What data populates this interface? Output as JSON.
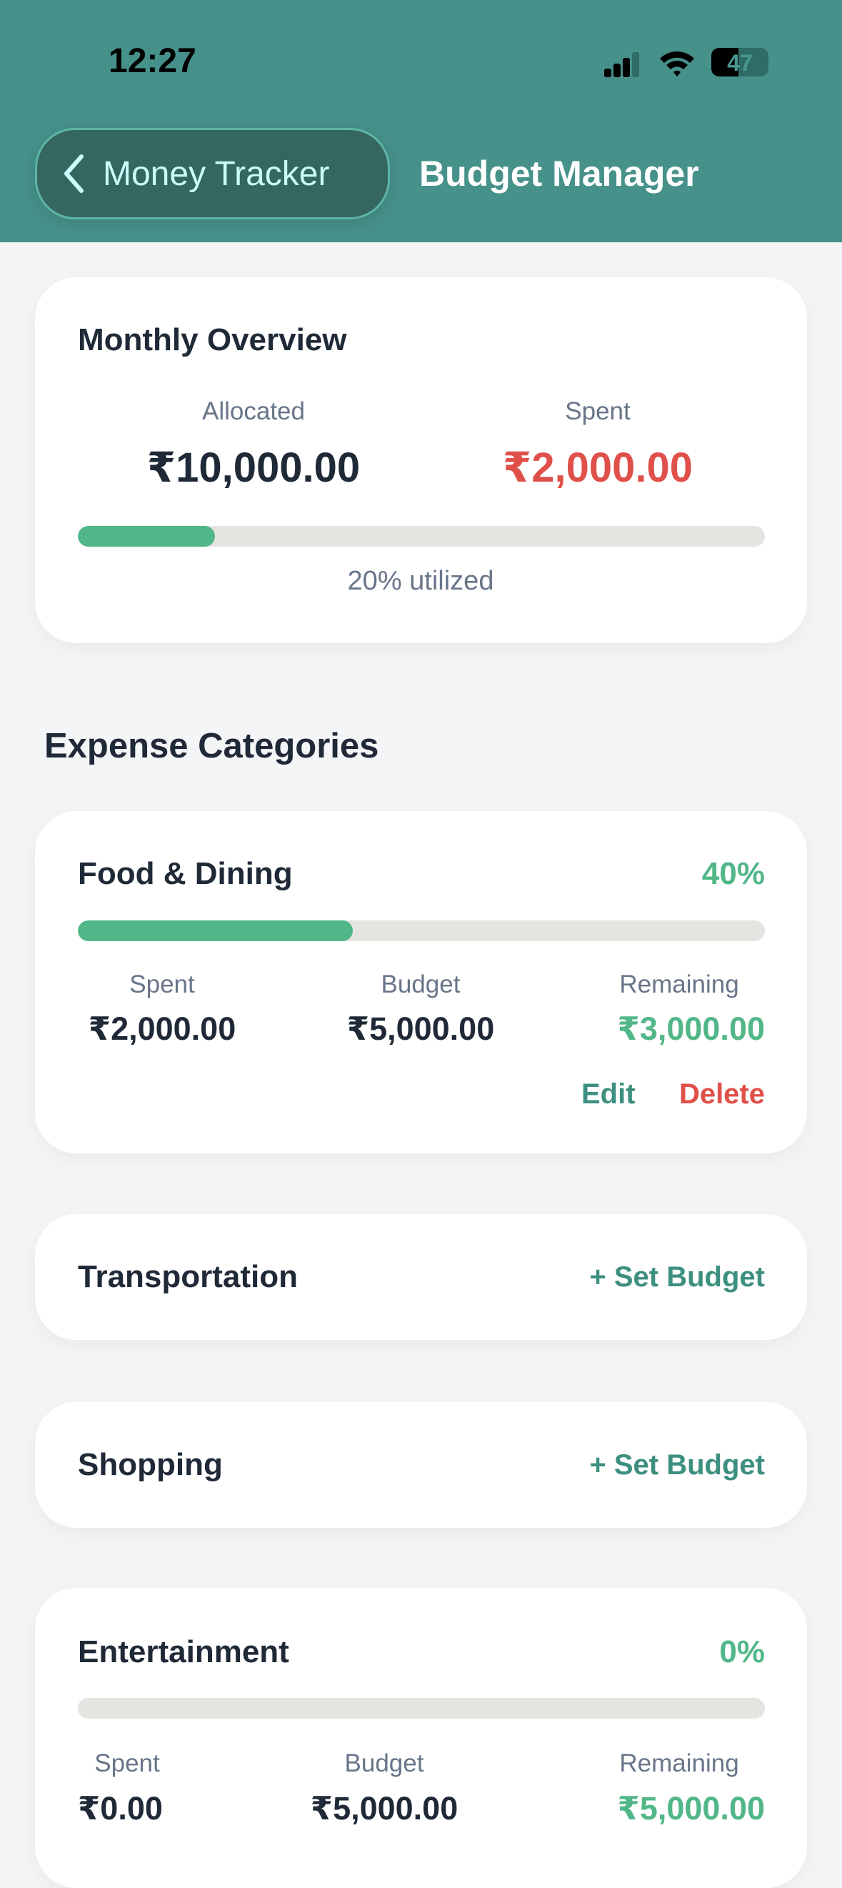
{
  "status_bar": {
    "time": "12:27",
    "battery": "47"
  },
  "header": {
    "back_label": "Money Tracker",
    "title": "Budget Manager"
  },
  "overview": {
    "title": "Monthly Overview",
    "allocated_label": "Allocated",
    "allocated": "₹10,000.00",
    "spent_label": "Spent",
    "spent": "₹2,000.00",
    "utilized_pct": 20,
    "utilized_text": "20% utilized"
  },
  "section_title": "Expense Categories",
  "categories": [
    {
      "name": "Food & Dining",
      "percent": "40%",
      "progress": 40,
      "spent_label": "Spent",
      "spent": "₹2,000.00",
      "budget_label": "Budget",
      "budget": "₹5,000.00",
      "remaining_label": "Remaining",
      "remaining": "₹3,000.00",
      "edit": "Edit",
      "delete": "Delete"
    },
    {
      "name": "Transportation",
      "action": "+ Set Budget"
    },
    {
      "name": "Shopping",
      "action": "+ Set Budget"
    },
    {
      "name": "Entertainment",
      "percent": "0%",
      "progress": 0,
      "spent_label": "Spent",
      "spent": "₹0.00",
      "budget_label": "Budget",
      "budget": "₹5,000.00",
      "remaining_label": "Remaining",
      "remaining": "₹5,000.00"
    }
  ],
  "colors": {
    "header": "#46918a",
    "accent_green": "#52b788",
    "danger": "#e0504a",
    "teal": "#3d8f80"
  }
}
